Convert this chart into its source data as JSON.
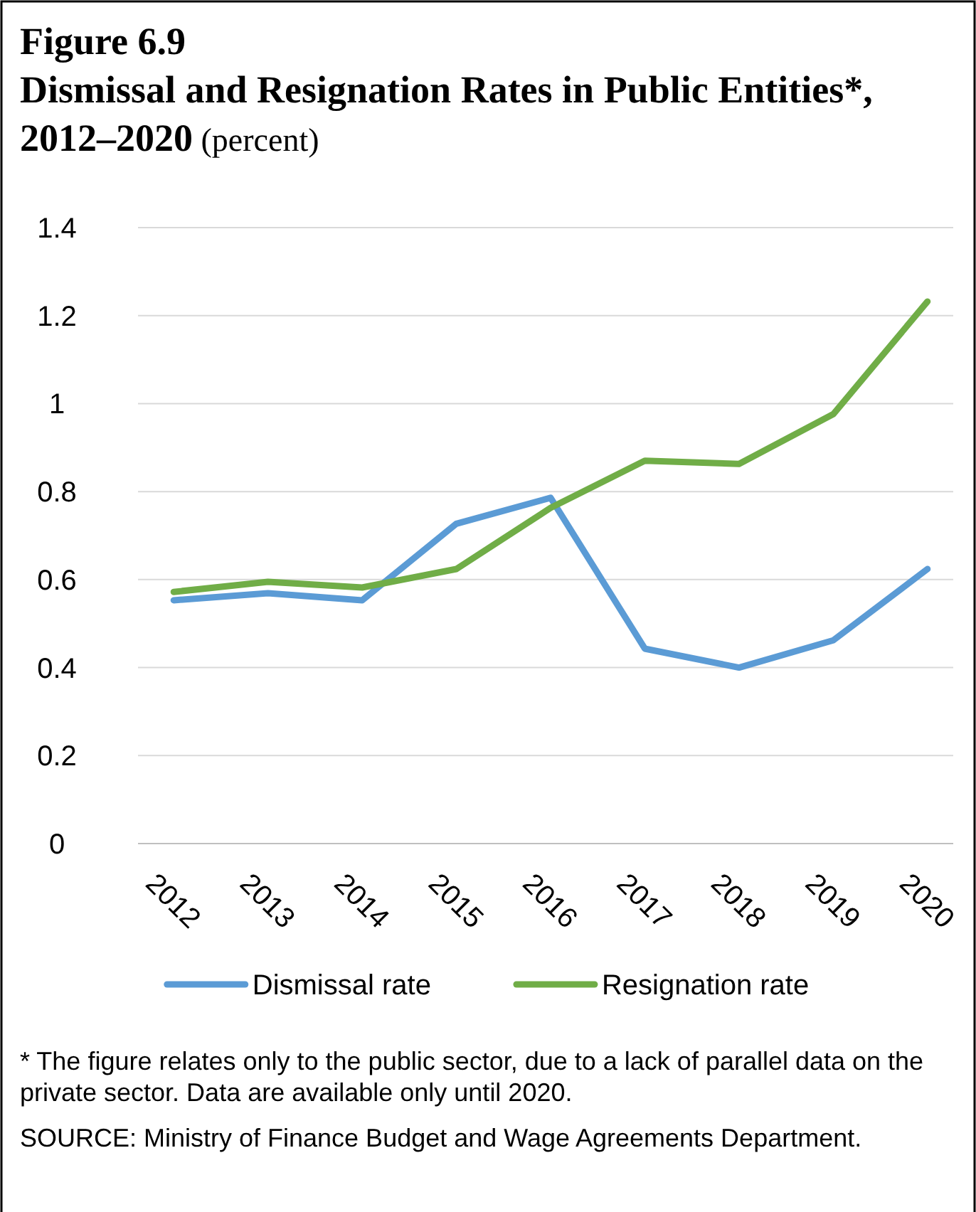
{
  "chart_data": {
    "type": "line",
    "title": "Figure 6.9",
    "subtitle": "Dismissal and Resignation Rates in Public Entities*, 2012–2020",
    "ylabel": "(percent)",
    "categories": [
      "2012",
      "2013",
      "2014",
      "2015",
      "2016",
      "2017",
      "2018",
      "2019",
      "2020"
    ],
    "series": [
      {
        "name": "Dismissal rate",
        "color": "#5b9bd5",
        "values": [
          0.553,
          0.569,
          0.553,
          0.727,
          0.786,
          0.443,
          0.4,
          0.462,
          0.624
        ]
      },
      {
        "name": "Resignation rate",
        "color": "#70ad47",
        "values": [
          0.572,
          0.595,
          0.582,
          0.624,
          0.763,
          0.87,
          0.863,
          0.976,
          1.232
        ]
      }
    ],
    "ylim": [
      0,
      1.4
    ],
    "yticks": [
      0,
      0.2,
      0.4,
      0.6,
      0.8,
      1,
      1.2,
      1.4
    ],
    "grid": "y",
    "legend": "bottom",
    "marker": "none",
    "line_style": "solid",
    "annotations": [
      "* The figure relates only to the public sector, due to a lack of parallel data on the private sector.  Data are available only until 2020.",
      "SOURCE: Ministry of Finance Budget and Wage Agreements Department."
    ]
  }
}
